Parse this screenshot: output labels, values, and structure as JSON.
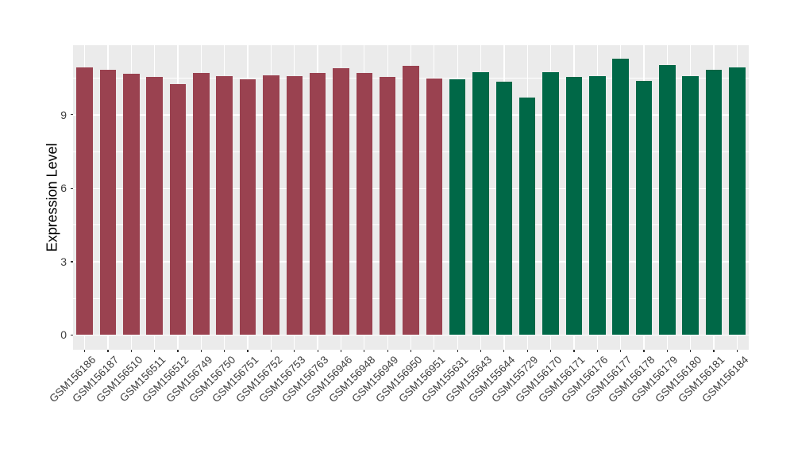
{
  "chart_data": {
    "type": "bar",
    "title": "",
    "xlabel": "",
    "ylabel": "Expression Level",
    "ylim": [
      -0.6,
      11.85
    ],
    "yticks": [
      0,
      3,
      6,
      9
    ],
    "minor_yticks": [
      1.5,
      4.5,
      7.5,
      10.5
    ],
    "grid": true,
    "legend_position": "none",
    "panel_background": "#EBEBEB",
    "grid_color": "#FFFFFF",
    "axis_text_color": "#404040",
    "tick_mark_color": "#333333",
    "group_colors": {
      "maroon": "#9A4250",
      "green": "#006847"
    },
    "bars": [
      {
        "sample": "GSM156186",
        "value": 10.95,
        "group": "maroon"
      },
      {
        "sample": "GSM156187",
        "value": 10.85,
        "group": "maroon"
      },
      {
        "sample": "GSM156510",
        "value": 10.68,
        "group": "maroon"
      },
      {
        "sample": "GSM156511",
        "value": 10.55,
        "group": "maroon"
      },
      {
        "sample": "GSM156512",
        "value": 10.25,
        "group": "maroon"
      },
      {
        "sample": "GSM156749",
        "value": 10.72,
        "group": "maroon"
      },
      {
        "sample": "GSM156750",
        "value": 10.6,
        "group": "maroon"
      },
      {
        "sample": "GSM156751",
        "value": 10.45,
        "group": "maroon"
      },
      {
        "sample": "GSM156752",
        "value": 10.62,
        "group": "maroon"
      },
      {
        "sample": "GSM156753",
        "value": 10.58,
        "group": "maroon"
      },
      {
        "sample": "GSM156763",
        "value": 10.7,
        "group": "maroon"
      },
      {
        "sample": "GSM156946",
        "value": 10.9,
        "group": "maroon"
      },
      {
        "sample": "GSM156948",
        "value": 10.7,
        "group": "maroon"
      },
      {
        "sample": "GSM156949",
        "value": 10.55,
        "group": "maroon"
      },
      {
        "sample": "GSM156950",
        "value": 11.0,
        "group": "maroon"
      },
      {
        "sample": "GSM156951",
        "value": 10.5,
        "group": "maroon"
      },
      {
        "sample": "GSM155631",
        "value": 10.45,
        "group": "green"
      },
      {
        "sample": "GSM155643",
        "value": 10.75,
        "group": "green"
      },
      {
        "sample": "GSM155644",
        "value": 10.35,
        "group": "green"
      },
      {
        "sample": "GSM155729",
        "value": 9.7,
        "group": "green"
      },
      {
        "sample": "GSM156170",
        "value": 10.75,
        "group": "green"
      },
      {
        "sample": "GSM156171",
        "value": 10.55,
        "group": "green"
      },
      {
        "sample": "GSM156176",
        "value": 10.6,
        "group": "green"
      },
      {
        "sample": "GSM156177",
        "value": 11.3,
        "group": "green"
      },
      {
        "sample": "GSM156178",
        "value": 10.4,
        "group": "green"
      },
      {
        "sample": "GSM156179",
        "value": 11.05,
        "group": "green"
      },
      {
        "sample": "GSM156180",
        "value": 10.6,
        "group": "green"
      },
      {
        "sample": "GSM156181",
        "value": 10.85,
        "group": "green"
      },
      {
        "sample": "GSM156184",
        "value": 10.95,
        "group": "green"
      }
    ]
  }
}
